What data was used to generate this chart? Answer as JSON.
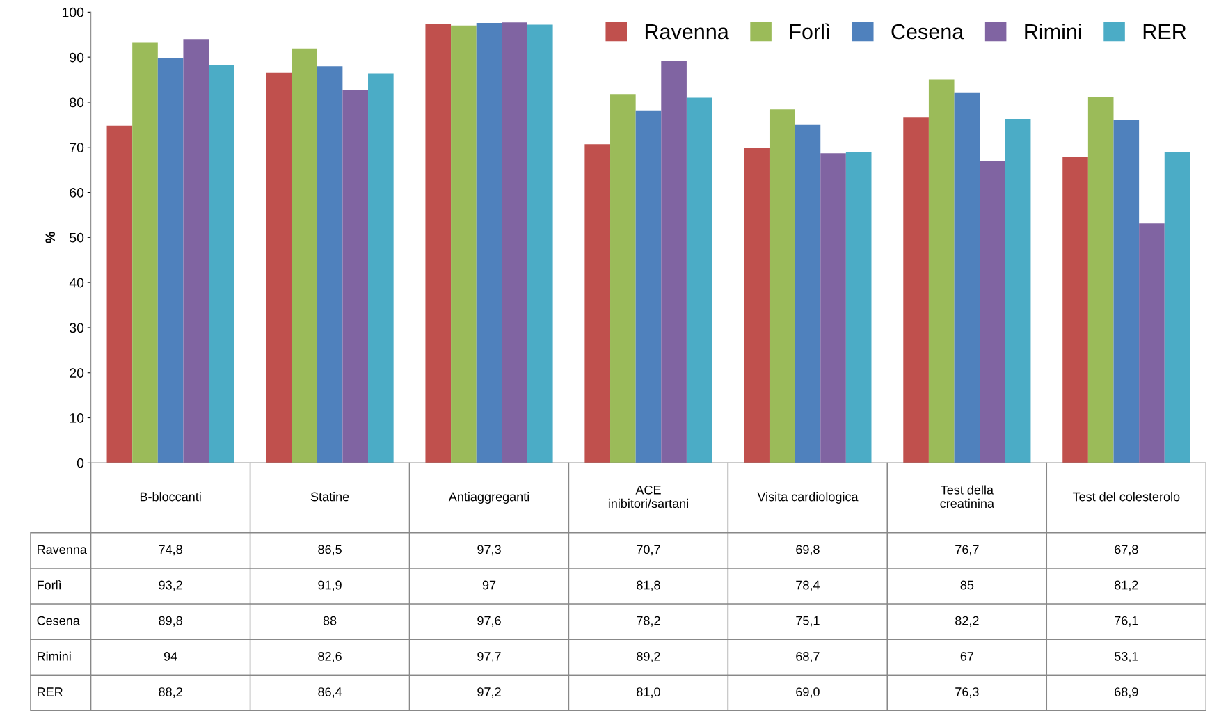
{
  "chart_data": {
    "type": "bar",
    "ylabel": "%",
    "categories": [
      "B-bloccanti",
      "Statine",
      "Antiaggreganti",
      "ACE\ninibitori/sartani",
      "Visita cardiologica",
      "Test della\ncreatinina",
      "Test del colesterolo"
    ],
    "series": [
      {
        "name": "Ravenna",
        "color": "#c0504d",
        "values": [
          74.8,
          86.5,
          97.3,
          70.7,
          69.8,
          76.7,
          67.8
        ],
        "value_labels": [
          "74,8",
          "86,5",
          "97,3",
          "70,7",
          "69,8",
          "76,7",
          "67,8"
        ]
      },
      {
        "name": "Forlì",
        "color": "#9bbb59",
        "values": [
          93.2,
          91.9,
          97,
          81.8,
          78.4,
          85,
          81.2
        ],
        "value_labels": [
          "93,2",
          "91,9",
          "97",
          "81,8",
          "78,4",
          "85",
          "81,2"
        ]
      },
      {
        "name": "Cesena",
        "color": "#4f81bd",
        "values": [
          89.8,
          88,
          97.6,
          78.2,
          75.1,
          82.2,
          76.1
        ],
        "value_labels": [
          "89,8",
          "88",
          "97,6",
          "78,2",
          "75,1",
          "82,2",
          "76,1"
        ]
      },
      {
        "name": "Rimini",
        "color": "#8064a2",
        "values": [
          94,
          82.6,
          97.7,
          89.2,
          68.7,
          67,
          53.1
        ],
        "value_labels": [
          "94",
          "82,6",
          "97,7",
          "89,2",
          "68,7",
          "67",
          "53,1"
        ]
      },
      {
        "name": "RER",
        "color": "#4bacc6",
        "values": [
          88.2,
          86.4,
          97.2,
          81.0,
          69.0,
          76.3,
          68.9
        ],
        "value_labels": [
          "88,2",
          "86,4",
          "97,2",
          "81,0",
          "69,0",
          "76,3",
          "68,9"
        ]
      }
    ],
    "ylim": [
      0,
      100
    ],
    "yticks": [
      0,
      10,
      20,
      30,
      40,
      50,
      60,
      70,
      80,
      90,
      100
    ],
    "grid": false,
    "legend": "top right"
  }
}
